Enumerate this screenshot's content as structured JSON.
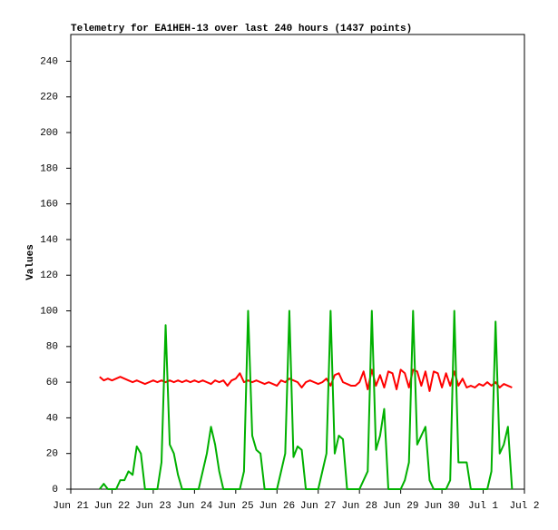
{
  "chart_data": {
    "type": "line",
    "title": "Telemetry for EA1HEH-13 over last 240 hours (1437 points)",
    "ylabel": "Values",
    "xlim": [
      0,
      11
    ],
    "xticks": [
      {
        "value": 0,
        "label": "Jun 21"
      },
      {
        "value": 1,
        "label": "Jun 22"
      },
      {
        "value": 2,
        "label": "Jun 23"
      },
      {
        "value": 3,
        "label": "Jun 24"
      },
      {
        "value": 4,
        "label": "Jun 25"
      },
      {
        "value": 5,
        "label": "Jun 26"
      },
      {
        "value": 6,
        "label": "Jun 27"
      },
      {
        "value": 7,
        "label": "Jun 28"
      },
      {
        "value": 8,
        "label": "Jun 29"
      },
      {
        "value": 9,
        "label": "Jun 30"
      },
      {
        "value": 10,
        "label": "Jul 1"
      },
      {
        "value": 11,
        "label": "Jul 2"
      }
    ],
    "ylim": [
      0,
      255
    ],
    "yticks": [
      0,
      20,
      40,
      60,
      80,
      100,
      120,
      140,
      160,
      180,
      200,
      220,
      240
    ],
    "x": [
      0.7,
      0.8,
      0.9,
      1.0,
      1.1,
      1.2,
      1.3,
      1.4,
      1.5,
      1.6,
      1.7,
      1.8,
      1.9,
      2.0,
      2.1,
      2.2,
      2.3,
      2.4,
      2.5,
      2.6,
      2.7,
      2.8,
      2.9,
      3.0,
      3.1,
      3.2,
      3.3,
      3.4,
      3.5,
      3.6,
      3.7,
      3.8,
      3.9,
      4.0,
      4.1,
      4.2,
      4.3,
      4.4,
      4.5,
      4.6,
      4.7,
      4.8,
      4.9,
      5.0,
      5.1,
      5.2,
      5.3,
      5.4,
      5.5,
      5.6,
      5.7,
      5.8,
      5.9,
      6.0,
      6.1,
      6.2,
      6.3,
      6.4,
      6.5,
      6.6,
      6.7,
      6.8,
      6.9,
      7.0,
      7.1,
      7.2,
      7.3,
      7.4,
      7.5,
      7.6,
      7.7,
      7.8,
      7.9,
      8.0,
      8.1,
      8.2,
      8.3,
      8.4,
      8.5,
      8.6,
      8.7,
      8.8,
      8.9,
      9.0,
      9.1,
      9.2,
      9.3,
      9.4,
      9.5,
      9.6,
      9.7,
      9.8,
      9.9,
      10.0,
      10.1,
      10.2,
      10.3,
      10.4,
      10.5,
      10.6,
      10.7
    ],
    "series": [
      {
        "color": "#ff0000",
        "values": [
          63,
          61,
          62,
          61,
          62,
          63,
          62,
          61,
          60,
          61,
          60,
          59,
          60,
          61,
          60,
          61,
          60,
          61,
          60,
          61,
          60,
          61,
          60,
          61,
          60,
          61,
          60,
          59,
          61,
          60,
          61,
          58,
          61,
          62,
          65,
          60,
          61,
          60,
          61,
          60,
          59,
          60,
          59,
          58,
          61,
          60,
          62,
          61,
          60,
          57,
          60,
          61,
          60,
          59,
          60,
          62,
          58,
          64,
          65,
          60,
          59,
          58,
          58,
          60,
          66,
          56,
          67,
          58,
          64,
          57,
          66,
          65,
          56,
          67,
          65,
          57,
          67,
          66,
          58,
          66,
          55,
          66,
          65,
          57,
          65,
          58,
          66,
          58,
          62,
          57,
          58,
          57,
          59,
          58,
          60,
          58,
          60,
          57,
          59,
          58,
          57
        ]
      },
      {
        "color": "#00b000",
        "values": [
          0,
          3,
          0,
          0,
          0,
          5,
          5,
          10,
          8,
          24,
          20,
          0,
          0,
          0,
          0,
          15,
          92,
          25,
          20,
          8,
          0,
          0,
          0,
          0,
          0,
          10,
          20,
          35,
          25,
          10,
          0,
          0,
          0,
          0,
          0,
          10,
          100,
          30,
          22,
          20,
          0,
          0,
          0,
          0,
          10,
          20,
          100,
          18,
          24,
          22,
          0,
          0,
          0,
          0,
          10,
          20,
          100,
          20,
          30,
          28,
          0,
          0,
          0,
          0,
          5,
          10,
          100,
          22,
          30,
          45,
          0,
          0,
          0,
          0,
          5,
          15,
          100,
          25,
          30,
          35,
          5,
          0,
          0,
          0,
          0,
          5,
          100,
          15,
          15,
          15,
          0,
          0,
          0,
          0,
          0,
          10,
          94,
          20,
          25,
          35,
          0
        ]
      }
    ]
  }
}
